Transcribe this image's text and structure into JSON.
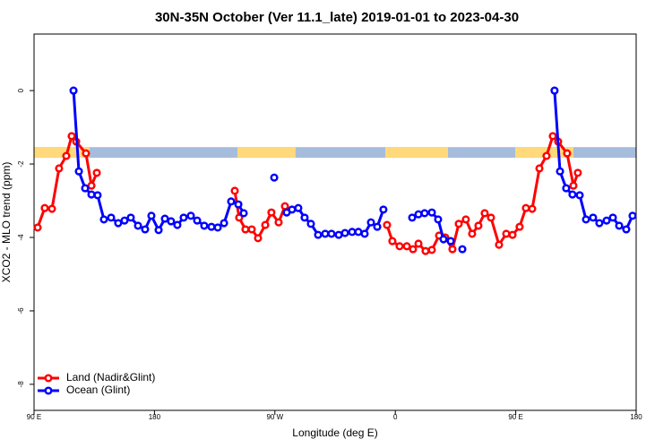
{
  "chart_data": {
    "type": "line",
    "title": "30N-35N October (Ver 11.1_late)   2019-01-01 to 2023-04-30",
    "x_label": "Longitude (deg E)",
    "y_label": "XCO2 - MLO trend (ppm)",
    "xlim": [
      90,
      540
    ],
    "ylim": [
      -8.71,
      1.54
    ],
    "xticks": [
      {
        "value": 90,
        "label": "90 E"
      },
      180,
      {
        "value": 270,
        "label": "90 W"
      },
      {
        "value": 360,
        "label": "0"
      },
      {
        "value": 450,
        "label": "90 E"
      },
      {
        "value": 540,
        "label": "180"
      }
    ],
    "yticks": [
      0,
      -2,
      -4,
      -6,
      -8
    ],
    "legend": "bottomleft",
    "land_mask": {
      "ymin": -1.83,
      "ymax": -1.54,
      "land_color": "#ffd97a",
      "ocean_color": "#a6bcdc",
      "land_ranges": [
        [
          90,
          131.5
        ],
        [
          242,
          285.5
        ],
        [
          352.5,
          399.4
        ],
        [
          449.6,
          493.1
        ]
      ]
    },
    "series": [
      {
        "name": "Land (Nadir&Glint)",
        "color": "#ff0000",
        "x": [
          92.7,
          98.0,
          103.4,
          108.7,
          114.1,
          118.1,
          121.5,
          128.8,
          132.9,
          136.9,
          null,
          240.0,
          243.3,
          248.0,
          252.7,
          257.4,
          262.8,
          267.4,
          272.8,
          277.5,
          null,
          353.8,
          357.8,
          363.2,
          368.6,
          373.2,
          377.3,
          382.6,
          387.3,
          392.7,
          397.3,
          402.7,
          407.4,
          412.7,
          417.4,
          422.1,
          426.8,
          431.5,
          437.5,
          442.9,
          447.6,
          452.9,
          457.6,
          462.3,
          467.7,
          473.0,
          477.7,
          481.7,
          488.4,
          493.1,
          496.4
        ],
        "values": [
          -3.73,
          -3.2,
          -3.22,
          -2.12,
          -1.78,
          -1.24,
          -1.39,
          -1.71,
          -2.59,
          -2.24,
          null,
          -2.73,
          -3.46,
          -3.78,
          -3.78,
          -4.02,
          -3.66,
          -3.32,
          -3.59,
          -3.15,
          null,
          -3.66,
          -4.1,
          -4.24,
          -4.24,
          -4.32,
          -4.17,
          -4.37,
          -4.34,
          -3.95,
          -4.0,
          -4.32,
          -3.63,
          -3.51,
          -3.9,
          -3.68,
          -3.34,
          -3.46,
          -4.2,
          -3.9,
          -3.93,
          -3.71,
          -3.2,
          -3.22,
          -2.12,
          -1.78,
          -1.24,
          -1.39,
          -1.71,
          -2.59,
          -2.24
        ]
      },
      {
        "name": "Ocean (Glint)",
        "color": "#0000ff",
        "x": [
          119.5,
          123.5,
          128.2,
          132.9,
          137.5,
          142.2,
          147.6,
          152.9,
          157.6,
          162.3,
          167.7,
          173.0,
          177.7,
          183.1,
          187.8,
          192.4,
          197.1,
          201.8,
          207.2,
          211.9,
          217.2,
          222.6,
          227.3,
          232.0,
          237.3,
          242.7,
          246.7,
          null,
          269.5,
          null,
          278.8,
          282.8,
          287.5,
          292.2,
          296.9,
          302.3,
          307.6,
          312.3,
          317.7,
          322.4,
          327.7,
          332.4,
          337.1,
          341.8,
          346.5,
          351.1,
          null,
          372.6,
          377.3,
          381.9,
          387.3,
          392.0,
          396.0,
          401.4,
          null,
          410.1,
          null,
          479.0,
          483.1,
          487.7,
          492.4,
          497.8,
          502.5,
          507.8,
          512.5,
          517.9,
          522.6,
          527.3,
          532.6,
          537.3
        ],
        "values": [
          0,
          -2.2,
          -2.66,
          -2.83,
          -2.85,
          -3.51,
          -3.46,
          -3.61,
          -3.54,
          -3.46,
          -3.68,
          -3.78,
          -3.41,
          -3.8,
          -3.49,
          -3.56,
          -3.66,
          -3.46,
          -3.41,
          -3.54,
          -3.68,
          -3.71,
          -3.73,
          -3.61,
          -3.02,
          -3.1,
          -3.34,
          null,
          -2.37,
          null,
          -3.32,
          -3.24,
          -3.2,
          -3.46,
          -3.63,
          -3.93,
          -3.9,
          -3.9,
          -3.93,
          -3.88,
          -3.85,
          -3.85,
          -3.9,
          -3.59,
          -3.71,
          -3.24,
          null,
          -3.46,
          -3.37,
          -3.34,
          -3.32,
          -3.51,
          -4.05,
          -4.1,
          null,
          -4.32,
          null,
          0,
          -2.2,
          -2.66,
          -2.83,
          -2.85,
          -3.51,
          -3.46,
          -3.61,
          -3.54,
          -3.46,
          -3.68,
          -3.78,
          -3.41
        ]
      }
    ]
  }
}
